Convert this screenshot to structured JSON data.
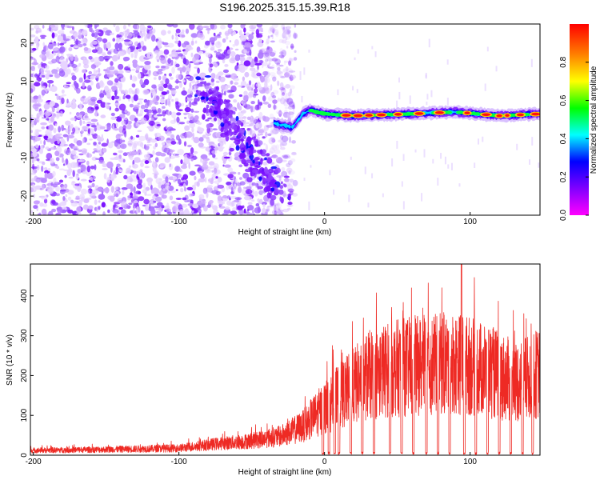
{
  "figure_title": "S196.2025.315.15.39.R18",
  "chart_data": [
    {
      "type": "heatmap",
      "name": "spectrogram",
      "xlabel": "Height of straight line (km)",
      "ylabel": "Frequency (Hz)",
      "xlim": [
        -202,
        148
      ],
      "ylim": [
        -25,
        25
      ],
      "xticks": [
        -200,
        -100,
        0,
        100
      ],
      "xtick_labels": [
        "-200",
        "-100",
        "0",
        "100"
      ],
      "yticks": [
        -20,
        -10,
        0,
        10,
        20
      ],
      "ytick_labels": [
        "-20",
        "-10",
        "0",
        "10",
        "20"
      ],
      "colorbar": {
        "label": "Normalized spectral amplitude",
        "range": [
          0,
          1
        ],
        "ticks": [
          0.0,
          0.2,
          0.4,
          0.6,
          0.8
        ],
        "tick_labels": [
          "0.0",
          "0.2",
          "0.4",
          "0.6",
          "0.8"
        ],
        "colors": [
          "#ff00ff",
          "#8000ff",
          "#0000ff",
          "#00ffff",
          "#00ff00",
          "#ffff00",
          "#ff8000",
          "#ff0000"
        ]
      },
      "trace": {
        "description_points_km_hz": [
          [
            -35,
            -1
          ],
          [
            -22,
            -2
          ],
          [
            -15,
            1.5
          ],
          [
            -10,
            2.5
          ],
          [
            0,
            1.5
          ],
          [
            20,
            1
          ],
          [
            60,
            1.5
          ],
          [
            90,
            2
          ],
          [
            120,
            1
          ],
          [
            148,
            1.5
          ]
        ],
        "peak_amplitude_segments_km": [
          [
            12,
            18
          ],
          [
            20,
            26
          ],
          [
            28,
            33
          ],
          [
            36,
            42
          ],
          [
            48,
            53
          ],
          [
            62,
            68
          ],
          [
            76,
            82
          ],
          [
            96,
            100
          ],
          [
            108,
            114
          ],
          [
            118,
            122
          ],
          [
            124,
            127
          ],
          [
            132,
            137
          ],
          [
            142,
            148
          ]
        ]
      },
      "noise_region_km": [
        -202,
        -25
      ],
      "diagonal_feature": {
        "from_km_hz": [
          -85,
          9
        ],
        "to_km_hz": [
          -28,
          -20
        ]
      }
    },
    {
      "type": "line",
      "name": "snr",
      "xlabel": "Height of straight line (km)",
      "ylabel": "SNR (10 * v/v)",
      "xlim": [
        -202,
        148
      ],
      "ylim": [
        0,
        480
      ],
      "xticks": [
        -200,
        -100,
        0,
        100
      ],
      "xtick_labels": [
        "-200",
        "-100",
        "0",
        "100"
      ],
      "yticks": [
        0,
        100,
        200,
        300,
        400
      ],
      "ytick_labels": [
        "0",
        "100",
        "200",
        "300",
        "400"
      ],
      "color": "#ee2a24",
      "envelope_km_snr": [
        [
          -202,
          15
        ],
        [
          -150,
          18
        ],
        [
          -100,
          22
        ],
        [
          -75,
          35
        ],
        [
          -50,
          45
        ],
        [
          -30,
          60
        ],
        [
          -15,
          90
        ],
        [
          0,
          150
        ],
        [
          15,
          200
        ],
        [
          30,
          250
        ],
        [
          45,
          270
        ],
        [
          60,
          280
        ],
        [
          75,
          285
        ],
        [
          90,
          290
        ],
        [
          100,
          280
        ],
        [
          115,
          260
        ],
        [
          130,
          230
        ],
        [
          140,
          240
        ],
        [
          148,
          260
        ]
      ],
      "dropouts_km": [
        -1,
        3,
        7,
        10,
        18,
        26,
        34,
        45,
        53,
        61,
        70,
        78,
        86,
        96,
        104,
        112,
        120,
        128,
        136,
        143
      ],
      "peak": {
        "x": 94,
        "y": 480
      }
    }
  ]
}
